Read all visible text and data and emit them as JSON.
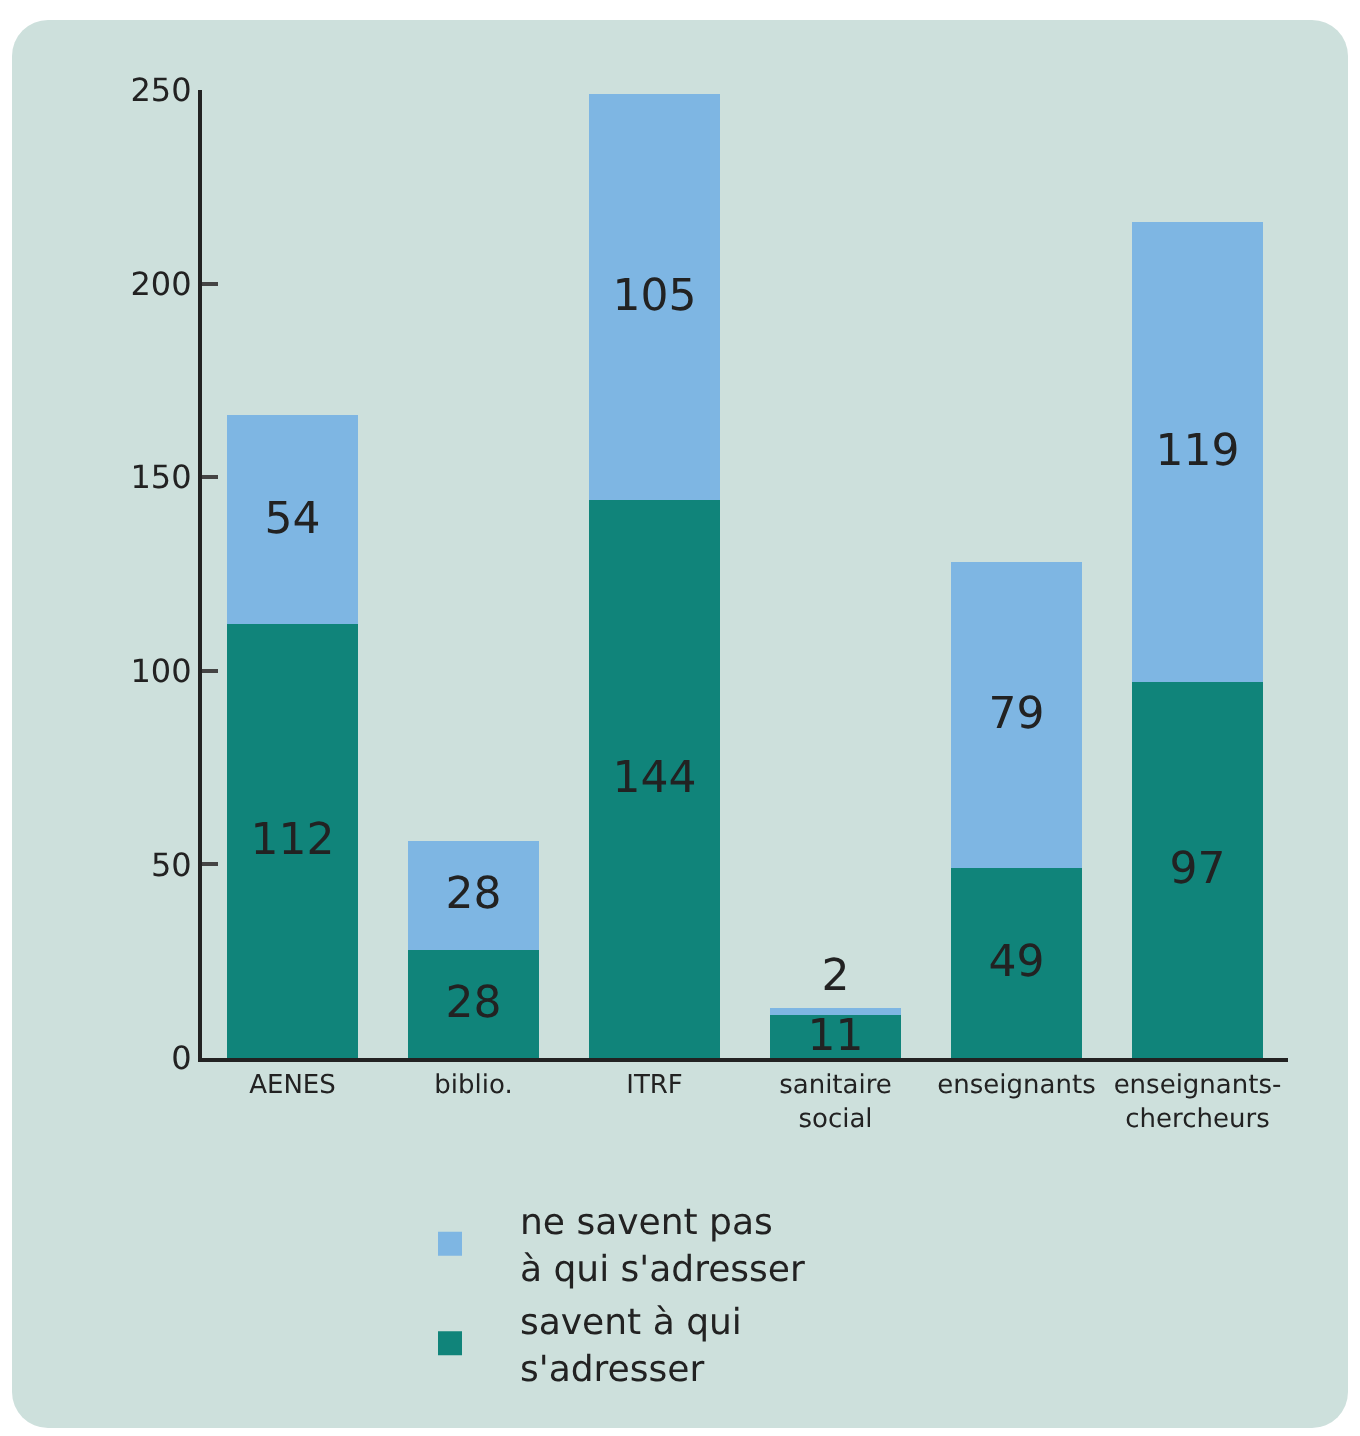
{
  "chart_data": {
    "type": "bar",
    "stacked": true,
    "categories": [
      "AENES",
      "biblio.",
      "ITRF",
      "sanitaire\nsocial",
      "enseignants",
      "enseignants-\nchercheurs"
    ],
    "series": [
      {
        "name": "savent à qui\ns'adresser",
        "color": "#10847a",
        "values": [
          112,
          28,
          144,
          11,
          49,
          97
        ]
      },
      {
        "name": "ne savent pas\nà qui s'adresser",
        "color": "#7eb6e3",
        "values": [
          54,
          28,
          105,
          2,
          79,
          119
        ]
      }
    ],
    "ylim": [
      0,
      250
    ],
    "yticks": [
      0,
      50,
      100,
      150,
      200,
      250
    ],
    "grid": false,
    "legend": "bottom",
    "data_labels": true
  }
}
